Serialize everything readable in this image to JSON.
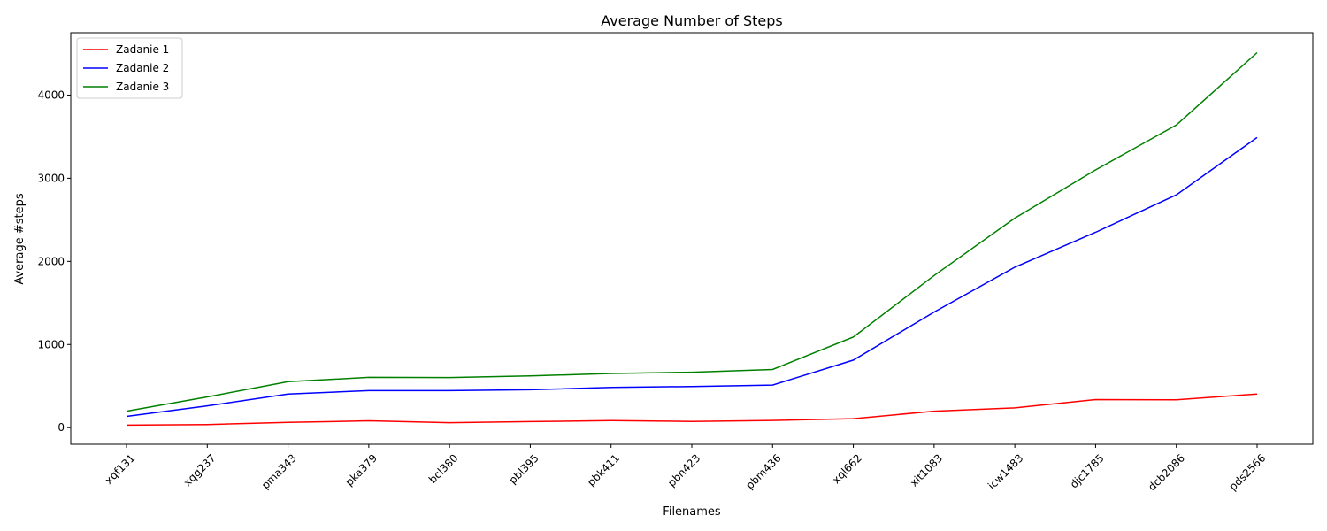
{
  "chart_data": {
    "type": "line",
    "title": "Average Number of Steps",
    "xlabel": "Filenames",
    "ylabel": "Average #steps",
    "categories": [
      "xqf131",
      "xqg237",
      "pma343",
      "pka379",
      "bcl380",
      "pbl395",
      "pbk411",
      "pbn423",
      "pbm436",
      "xql662",
      "xit1083",
      "icw1483",
      "djc1785",
      "dcb2086",
      "pds2566"
    ],
    "ylim": [
      -200,
      4750
    ],
    "yticks": [
      0,
      1000,
      2000,
      3000,
      4000
    ],
    "grid": false,
    "legend_position": "upper-left",
    "series": [
      {
        "name": "Zadanie 1",
        "color": "#ff0000",
        "values": [
          30,
          37,
          63,
          82,
          60,
          72,
          84,
          75,
          86,
          108,
          198,
          238,
          338,
          334,
          405
        ]
      },
      {
        "name": "Zadanie 2",
        "color": "#0000ff",
        "values": [
          135,
          262,
          404,
          445,
          445,
          456,
          483,
          495,
          512,
          812,
          1390,
          1930,
          2350,
          2800,
          3490
        ]
      },
      {
        "name": "Zadanie 3",
        "color": "#008000",
        "values": [
          198,
          370,
          553,
          605,
          603,
          622,
          652,
          667,
          700,
          1090,
          1830,
          2520,
          3100,
          3640,
          4510
        ]
      }
    ]
  }
}
